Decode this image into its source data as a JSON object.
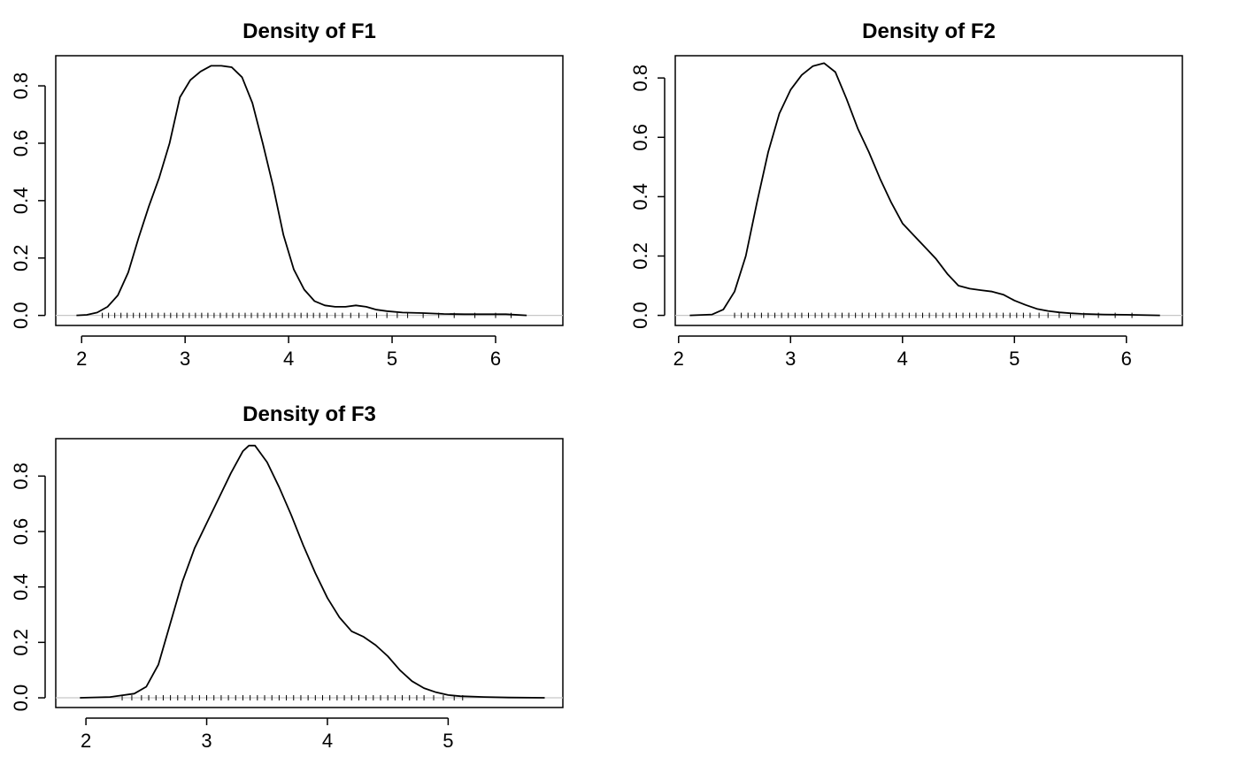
{
  "chart_data": [
    {
      "type": "line",
      "title": "Density of F1",
      "xlabel": "",
      "ylabel": "",
      "xlim": [
        1.75,
        6.65
      ],
      "ylim": [
        -0.035,
        0.905
      ],
      "xticks": [
        2,
        3,
        4,
        5,
        6
      ],
      "xtick_labels": [
        "2",
        "3",
        "4",
        "5",
        "6"
      ],
      "yticks": [
        0.0,
        0.2,
        0.4,
        0.6,
        0.8
      ],
      "ytick_labels": [
        "0.0",
        "0.2",
        "0.4",
        "0.6",
        "0.8"
      ],
      "grid": false,
      "x": [
        1.95,
        2.05,
        2.15,
        2.25,
        2.35,
        2.45,
        2.55,
        2.65,
        2.75,
        2.85,
        2.95,
        3.05,
        3.15,
        3.25,
        3.35,
        3.45,
        3.55,
        3.65,
        3.75,
        3.85,
        3.95,
        4.05,
        4.15,
        4.25,
        4.35,
        4.45,
        4.55,
        4.65,
        4.75,
        4.85,
        4.95,
        5.1,
        5.3,
        5.5,
        5.7,
        5.9,
        6.1,
        6.3
      ],
      "y": [
        0.0,
        0.002,
        0.01,
        0.03,
        0.07,
        0.15,
        0.27,
        0.38,
        0.48,
        0.6,
        0.76,
        0.82,
        0.85,
        0.87,
        0.87,
        0.865,
        0.83,
        0.74,
        0.6,
        0.45,
        0.28,
        0.16,
        0.09,
        0.05,
        0.035,
        0.03,
        0.03,
        0.035,
        0.03,
        0.02,
        0.015,
        0.01,
        0.008,
        0.005,
        0.004,
        0.004,
        0.004,
        0.0
      ],
      "rug": [
        2.2,
        2.26,
        2.32,
        2.38,
        2.44,
        2.5,
        2.56,
        2.62,
        2.68,
        2.74,
        2.8,
        2.86,
        2.92,
        2.98,
        3.04,
        3.1,
        3.16,
        3.22,
        3.28,
        3.34,
        3.4,
        3.46,
        3.52,
        3.58,
        3.64,
        3.7,
        3.76,
        3.82,
        3.88,
        3.94,
        4.0,
        4.06,
        4.12,
        4.18,
        4.24,
        4.3,
        4.37,
        4.45,
        4.52,
        4.6,
        4.68,
        4.76,
        4.85,
        4.95,
        5.05,
        5.15,
        5.3,
        5.45,
        5.6,
        5.8,
        6.0,
        6.15
      ]
    },
    {
      "type": "line",
      "title": "Density of F2",
      "xlabel": "",
      "ylabel": "",
      "xlim": [
        1.97,
        6.5
      ],
      "ylim": [
        -0.034,
        0.875
      ],
      "xticks": [
        2,
        3,
        4,
        5,
        6
      ],
      "xtick_labels": [
        "2",
        "3",
        "4",
        "5",
        "6"
      ],
      "yticks": [
        0.0,
        0.2,
        0.4,
        0.6,
        0.8
      ],
      "ytick_labels": [
        "0.0",
        "0.2",
        "0.4",
        "0.6",
        "0.8"
      ],
      "grid": false,
      "x": [
        2.1,
        2.3,
        2.4,
        2.5,
        2.6,
        2.7,
        2.8,
        2.9,
        3.0,
        3.1,
        3.2,
        3.3,
        3.4,
        3.5,
        3.6,
        3.7,
        3.8,
        3.9,
        4.0,
        4.1,
        4.2,
        4.3,
        4.4,
        4.5,
        4.6,
        4.7,
        4.8,
        4.9,
        5.0,
        5.1,
        5.2,
        5.3,
        5.4,
        5.5,
        5.6,
        5.8,
        6.0,
        6.3
      ],
      "y": [
        0.0,
        0.003,
        0.02,
        0.08,
        0.2,
        0.38,
        0.55,
        0.68,
        0.76,
        0.81,
        0.84,
        0.85,
        0.82,
        0.73,
        0.63,
        0.55,
        0.46,
        0.38,
        0.31,
        0.27,
        0.23,
        0.19,
        0.14,
        0.1,
        0.09,
        0.085,
        0.08,
        0.07,
        0.05,
        0.035,
        0.022,
        0.015,
        0.01,
        0.007,
        0.005,
        0.003,
        0.002,
        0.0
      ],
      "rug": [
        2.5,
        2.56,
        2.62,
        2.68,
        2.74,
        2.8,
        2.86,
        2.92,
        2.98,
        3.04,
        3.1,
        3.16,
        3.22,
        3.28,
        3.34,
        3.4,
        3.46,
        3.52,
        3.58,
        3.64,
        3.7,
        3.76,
        3.82,
        3.88,
        3.94,
        4.0,
        4.06,
        4.12,
        4.18,
        4.24,
        4.3,
        4.36,
        4.42,
        4.48,
        4.54,
        4.6,
        4.66,
        4.72,
        4.78,
        4.84,
        4.9,
        4.96,
        5.02,
        5.08,
        5.14,
        5.22,
        5.3,
        5.4,
        5.5,
        5.62,
        5.75,
        5.9,
        6.05
      ]
    },
    {
      "type": "line",
      "title": "Density of F3",
      "xlabel": "",
      "ylabel": "",
      "xlim": [
        1.75,
        5.95
      ],
      "ylim": [
        -0.035,
        0.935
      ],
      "xticks": [
        2,
        3,
        4,
        5
      ],
      "xtick_labels": [
        "2",
        "3",
        "4",
        "5"
      ],
      "yticks": [
        0.0,
        0.2,
        0.4,
        0.6,
        0.8
      ],
      "ytick_labels": [
        "0.0",
        "0.2",
        "0.4",
        "0.6",
        "0.8"
      ],
      "grid": false,
      "x": [
        1.95,
        2.2,
        2.4,
        2.5,
        2.6,
        2.7,
        2.8,
        2.9,
        3.0,
        3.1,
        3.2,
        3.3,
        3.35,
        3.4,
        3.5,
        3.6,
        3.7,
        3.8,
        3.9,
        4.0,
        4.1,
        4.2,
        4.3,
        4.4,
        4.5,
        4.6,
        4.7,
        4.8,
        4.9,
        5.0,
        5.1,
        5.3,
        5.5,
        5.8
      ],
      "y": [
        0.0,
        0.003,
        0.015,
        0.04,
        0.12,
        0.27,
        0.42,
        0.54,
        0.63,
        0.72,
        0.81,
        0.89,
        0.91,
        0.91,
        0.85,
        0.76,
        0.66,
        0.55,
        0.45,
        0.36,
        0.29,
        0.24,
        0.22,
        0.19,
        0.15,
        0.1,
        0.06,
        0.035,
        0.02,
        0.01,
        0.006,
        0.003,
        0.001,
        0.0
      ],
      "rug": [
        2.3,
        2.38,
        2.46,
        2.52,
        2.58,
        2.64,
        2.7,
        2.76,
        2.82,
        2.88,
        2.94,
        3.0,
        3.06,
        3.12,
        3.18,
        3.24,
        3.3,
        3.36,
        3.42,
        3.48,
        3.54,
        3.6,
        3.66,
        3.72,
        3.78,
        3.84,
        3.9,
        3.96,
        4.02,
        4.08,
        4.14,
        4.2,
        4.26,
        4.32,
        4.38,
        4.44,
        4.5,
        4.56,
        4.62,
        4.68,
        4.74,
        4.8,
        4.88,
        4.96,
        5.05,
        5.12
      ]
    }
  ]
}
